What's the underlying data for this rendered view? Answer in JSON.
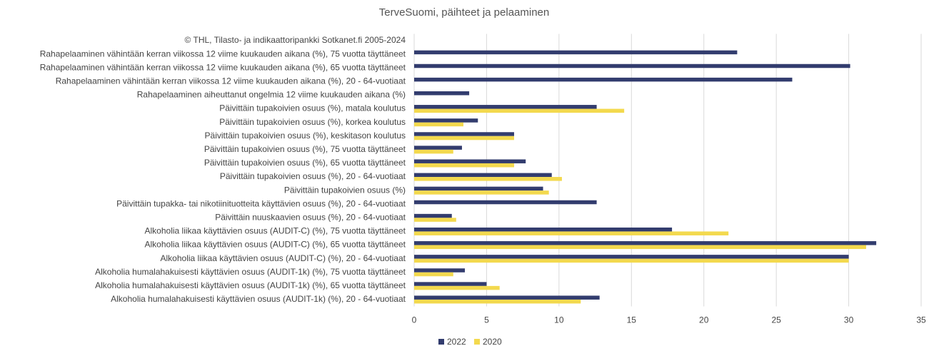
{
  "chart_data": {
    "type": "hbar",
    "title": "TerveSuomi, päihteet ja pelaaminen",
    "categories": [
      "© THL, Tilasto- ja indikaattoripankki Sotkanet.fi 2005-2024",
      "Rahapelaaminen vähintään kerran viikossa 12 viime kuukauden aikana (%), 75 vuotta täyttäneet",
      "Rahapelaaminen vähintään kerran viikossa 12 viime kuukauden aikana (%), 65 vuotta täyttäneet",
      "Rahapelaaminen vähintään kerran viikossa 12 viime kuukauden aikana (%), 20 - 64-vuotiaat",
      "Rahapelaaminen aiheuttanut ongelmia 12 viime kuukauden aikana (%)",
      "Päivittäin tupakoivien osuus (%), matala koulutus",
      "Päivittäin tupakoivien osuus (%), korkea koulutus",
      "Päivittäin tupakoivien osuus (%), keskitason koulutus",
      "Päivittäin tupakoivien osuus (%), 75 vuotta täyttäneet",
      "Päivittäin tupakoivien osuus (%), 65 vuotta täyttäneet",
      "Päivittäin tupakoivien osuus (%), 20 - 64-vuotiaat",
      "Päivittäin tupakoivien osuus (%)",
      "Päivittäin tupakka- tai nikotiinituotteita käyttävien osuus (%), 20 - 64-vuotiaat",
      "Päivittäin nuuskaavien osuus (%), 20 - 64-vuotiaat",
      "Alkoholia liikaa käyttävien osuus (AUDIT-C) (%), 75 vuotta täyttäneet",
      "Alkoholia liikaa käyttävien osuus (AUDIT-C) (%), 65 vuotta täyttäneet",
      "Alkoholia liikaa käyttävien osuus (AUDIT-C) (%), 20 - 64-vuotiaat",
      "Alkoholia humalahakuisesti käyttävien osuus (AUDIT-1k) (%), 75 vuotta täyttäneet",
      "Alkoholia humalahakuisesti käyttävien osuus (AUDIT-1k) (%), 65 vuotta täyttäneet",
      "Alkoholia humalahakuisesti käyttävien osuus (AUDIT-1k) (%), 20 - 64-vuotiaat"
    ],
    "series": [
      {
        "name": "2022",
        "color": "#323c6e",
        "values": [
          null,
          22.3,
          30.1,
          26.1,
          3.8,
          12.6,
          4.4,
          6.9,
          3.3,
          7.7,
          9.5,
          8.9,
          12.6,
          2.6,
          17.8,
          31.9,
          30.0,
          3.5,
          5.0,
          12.8
        ]
      },
      {
        "name": "2020",
        "color": "#f3d94e",
        "values": [
          null,
          null,
          null,
          null,
          null,
          14.5,
          3.4,
          6.9,
          2.7,
          6.9,
          10.2,
          9.3,
          null,
          2.9,
          21.7,
          31.2,
          30.0,
          2.7,
          5.9,
          11.5
        ]
      }
    ],
    "xlim": [
      0,
      35
    ],
    "xticks": [
      0,
      5,
      10,
      15,
      20,
      25,
      30,
      35
    ],
    "grid": true,
    "legend": "bottom"
  }
}
